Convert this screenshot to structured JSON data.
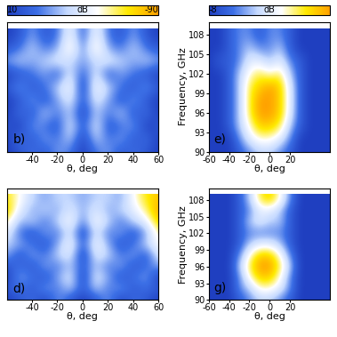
{
  "chart_data": [
    {
      "type": "heatmap",
      "label": "b)",
      "xlabel": "θ, deg",
      "tick_labels": "x",
      "x": [
        -60,
        -50,
        -40,
        -30,
        -20,
        -10,
        0,
        10,
        20,
        30,
        40,
        50,
        60
      ],
      "y": [
        90,
        92,
        94,
        96,
        98,
        100,
        102,
        104,
        106,
        108
      ],
      "xlim": [
        -60,
        60
      ],
      "ylim": [
        90,
        110
      ],
      "xticks": [
        -40,
        -20,
        0,
        20,
        40,
        60
      ],
      "colorbar": {
        "range": [
          10,
          -90
        ],
        "ticks": [
          10,
          -90
        ],
        "label": "dB"
      },
      "cells": [
        [
          10,
          0,
          -10,
          0,
          -20,
          -10,
          10,
          -10,
          -20,
          0,
          -10,
          0,
          10
        ],
        [
          10,
          -10,
          0,
          -20,
          -10,
          -30,
          10,
          -30,
          -10,
          -20,
          0,
          -10,
          10
        ],
        [
          0,
          10,
          -20,
          -10,
          0,
          -40,
          0,
          -40,
          0,
          -10,
          -20,
          10,
          0
        ],
        [
          10,
          -10,
          0,
          -30,
          -10,
          -30,
          10,
          -30,
          -10,
          -30,
          0,
          -10,
          10
        ],
        [
          10,
          0,
          -20,
          0,
          -20,
          -40,
          0,
          -40,
          -20,
          0,
          -20,
          0,
          10
        ],
        [
          0,
          -20,
          0,
          -10,
          -30,
          -50,
          10,
          -50,
          -30,
          -10,
          0,
          -20,
          0
        ],
        [
          10,
          0,
          -10,
          -20,
          0,
          -40,
          0,
          -40,
          0,
          -20,
          -10,
          0,
          10
        ],
        [
          -20,
          -30,
          -20,
          -30,
          -40,
          -30,
          -20,
          -30,
          -40,
          -30,
          -20,
          -30,
          -20
        ],
        [
          0,
          -10,
          -30,
          -10,
          -20,
          -60,
          -10,
          -60,
          -20,
          -10,
          -30,
          -10,
          0
        ],
        [
          10,
          0,
          -20,
          0,
          -10,
          -50,
          0,
          -50,
          -10,
          0,
          -20,
          0,
          10
        ]
      ]
    },
    {
      "type": "heatmap",
      "label": "e)",
      "xlabel": "θ, deg",
      "ylabel": "Frequency, GHz",
      "x": [
        -60,
        -50,
        -40,
        -30,
        -20,
        -10,
        0,
        10,
        20,
        30,
        40,
        50,
        60
      ],
      "y": [
        90,
        92,
        94,
        96,
        98,
        100,
        102,
        104,
        106,
        108
      ],
      "xlim": [
        -60,
        60
      ],
      "ylim": [
        90,
        110
      ],
      "xticks": [
        -60,
        -40,
        -20,
        0,
        20
      ],
      "yticks": [
        90,
        93,
        96,
        99,
        102,
        105,
        108
      ],
      "colorbar": {
        "range": [
          -8,
          0
        ],
        "ticks": [
          -8
        ],
        "label": "dB"
      },
      "cells": [
        [
          -8,
          -8,
          -8,
          -7,
          -6,
          -5,
          -5,
          -6,
          -7,
          -8,
          -8,
          -8,
          -8
        ],
        [
          -8,
          -8,
          -8,
          -6,
          -4,
          -3,
          -3,
          -4,
          -6,
          -8,
          -8,
          -8,
          -8
        ],
        [
          -8,
          -8,
          -7,
          -5,
          -3,
          -1,
          -1,
          -2,
          -5,
          -7,
          -8,
          -8,
          -8
        ],
        [
          -8,
          -8,
          -7,
          -5,
          -2,
          0,
          0,
          -1,
          -4,
          -7,
          -8,
          -8,
          -8
        ],
        [
          -8,
          -8,
          -7,
          -5,
          -2,
          0,
          0,
          -1,
          -4,
          -7,
          -8,
          -8,
          -8
        ],
        [
          -8,
          -8,
          -7,
          -5,
          -2,
          -1,
          0,
          -1,
          -4,
          -7,
          -8,
          -8,
          -8
        ],
        [
          -8,
          -8,
          -7,
          -5,
          -3,
          -2,
          -3,
          -2,
          -5,
          -7,
          -8,
          -8,
          -8
        ],
        [
          -8,
          -7,
          -7,
          -6,
          -4,
          -4,
          -5,
          -4,
          -6,
          -7,
          -8,
          -8,
          -8
        ],
        [
          -8,
          -8,
          -7,
          -6,
          -5,
          -6,
          -6,
          -5,
          -7,
          -8,
          -8,
          -8,
          -8
        ],
        [
          -8,
          -8,
          -7,
          -6,
          -6,
          -7,
          -6,
          -6,
          -7,
          -8,
          -8,
          -8,
          -8
        ]
      ]
    },
    {
      "type": "heatmap",
      "label": "d)",
      "xlabel": "θ, deg",
      "tick_labels": "x",
      "x": [
        -60,
        -50,
        -40,
        -30,
        -20,
        -10,
        0,
        10,
        20,
        30,
        40,
        50,
        60
      ],
      "y": [
        90,
        92,
        94,
        96,
        98,
        100,
        102,
        104,
        106,
        108
      ],
      "xlim": [
        -60,
        60
      ],
      "ylim": [
        90,
        110
      ],
      "xticks": [
        -40,
        -20,
        0,
        20,
        40,
        60
      ],
      "cbar_range": [
        10,
        -90
      ],
      "cells": [
        [
          10,
          0,
          -10,
          10,
          -20,
          0,
          10,
          0,
          -20,
          10,
          -10,
          0,
          10
        ],
        [
          0,
          -10,
          0,
          -20,
          -10,
          -30,
          0,
          -30,
          -10,
          -20,
          0,
          -10,
          0
        ],
        [
          10,
          -20,
          -10,
          0,
          -20,
          -40,
          10,
          -40,
          -20,
          0,
          -10,
          -20,
          10
        ],
        [
          0,
          -10,
          0,
          -20,
          -10,
          -30,
          0,
          -30,
          -10,
          -20,
          0,
          -10,
          -20
        ],
        [
          -20,
          0,
          -20,
          -10,
          -30,
          -40,
          10,
          -40,
          -30,
          -10,
          -20,
          0,
          -40
        ],
        [
          -30,
          -20,
          -10,
          0,
          -20,
          -50,
          0,
          -50,
          -20,
          0,
          -10,
          -30,
          -50
        ],
        [
          -40,
          -10,
          0,
          -20,
          -10,
          -40,
          10,
          -40,
          -10,
          -20,
          0,
          -20,
          -60
        ],
        [
          -60,
          -20,
          -30,
          -10,
          -30,
          -50,
          -10,
          -50,
          -30,
          -10,
          -30,
          -40,
          -80
        ],
        [
          -80,
          -40,
          -20,
          -30,
          -20,
          -40,
          -20,
          -40,
          -20,
          -30,
          -40,
          -60,
          -90
        ],
        [
          -70,
          -50,
          -30,
          -20,
          -30,
          -30,
          -20,
          -30,
          -30,
          -20,
          -50,
          -70,
          -80
        ]
      ]
    },
    {
      "type": "heatmap",
      "label": "g)",
      "xlabel": "θ, deg",
      "ylabel": "Frequency, GHz",
      "x": [
        -60,
        -50,
        -40,
        -30,
        -20,
        -10,
        0,
        10,
        20,
        30,
        40,
        50,
        60
      ],
      "y": [
        90,
        92,
        94,
        96,
        98,
        100,
        102,
        104,
        106,
        108
      ],
      "xlim": [
        -60,
        60
      ],
      "ylim": [
        90,
        110
      ],
      "xticks": [
        -60,
        -40,
        -20,
        0,
        20
      ],
      "yticks": [
        90,
        93,
        96,
        99,
        102,
        105,
        108
      ],
      "cbar_range": [
        -8,
        0
      ],
      "cells": [
        [
          -8,
          -8,
          -8,
          -7,
          -6,
          -5,
          -5,
          -6,
          -7,
          -8,
          -8,
          -8,
          -8
        ],
        [
          -8,
          -8,
          -8,
          -6,
          -5,
          -3,
          -3,
          -4,
          -6,
          -8,
          -8,
          -8,
          -8
        ],
        [
          -8,
          -8,
          -8,
          -6,
          -3,
          -1,
          -1,
          -3,
          -6,
          -8,
          -8,
          -8,
          -8
        ],
        [
          -8,
          -8,
          -8,
          -5,
          -2,
          0,
          0,
          -2,
          -5,
          -8,
          -8,
          -8,
          -8
        ],
        [
          -8,
          -8,
          -8,
          -6,
          -3,
          -1,
          -1,
          -3,
          -6,
          -8,
          -8,
          -8,
          -8
        ],
        [
          -8,
          -8,
          -8,
          -7,
          -5,
          -4,
          -4,
          -5,
          -7,
          -8,
          -8,
          -8,
          -8
        ],
        [
          -8,
          -8,
          -8,
          -7,
          -6,
          -6,
          -6,
          -6,
          -7,
          -8,
          -8,
          -8,
          -8
        ],
        [
          -8,
          -8,
          -8,
          -7,
          -5,
          -4,
          -5,
          -5,
          -7,
          -8,
          -8,
          -8,
          -8
        ],
        [
          -8,
          -8,
          -8,
          -7,
          -6,
          -4,
          -4,
          -5,
          -7,
          -8,
          -8,
          -8,
          -8
        ],
        [
          -8,
          -8,
          -8,
          -7,
          -5,
          -2,
          -1,
          -3,
          -6,
          -8,
          -8,
          -8,
          -8
        ]
      ]
    }
  ]
}
